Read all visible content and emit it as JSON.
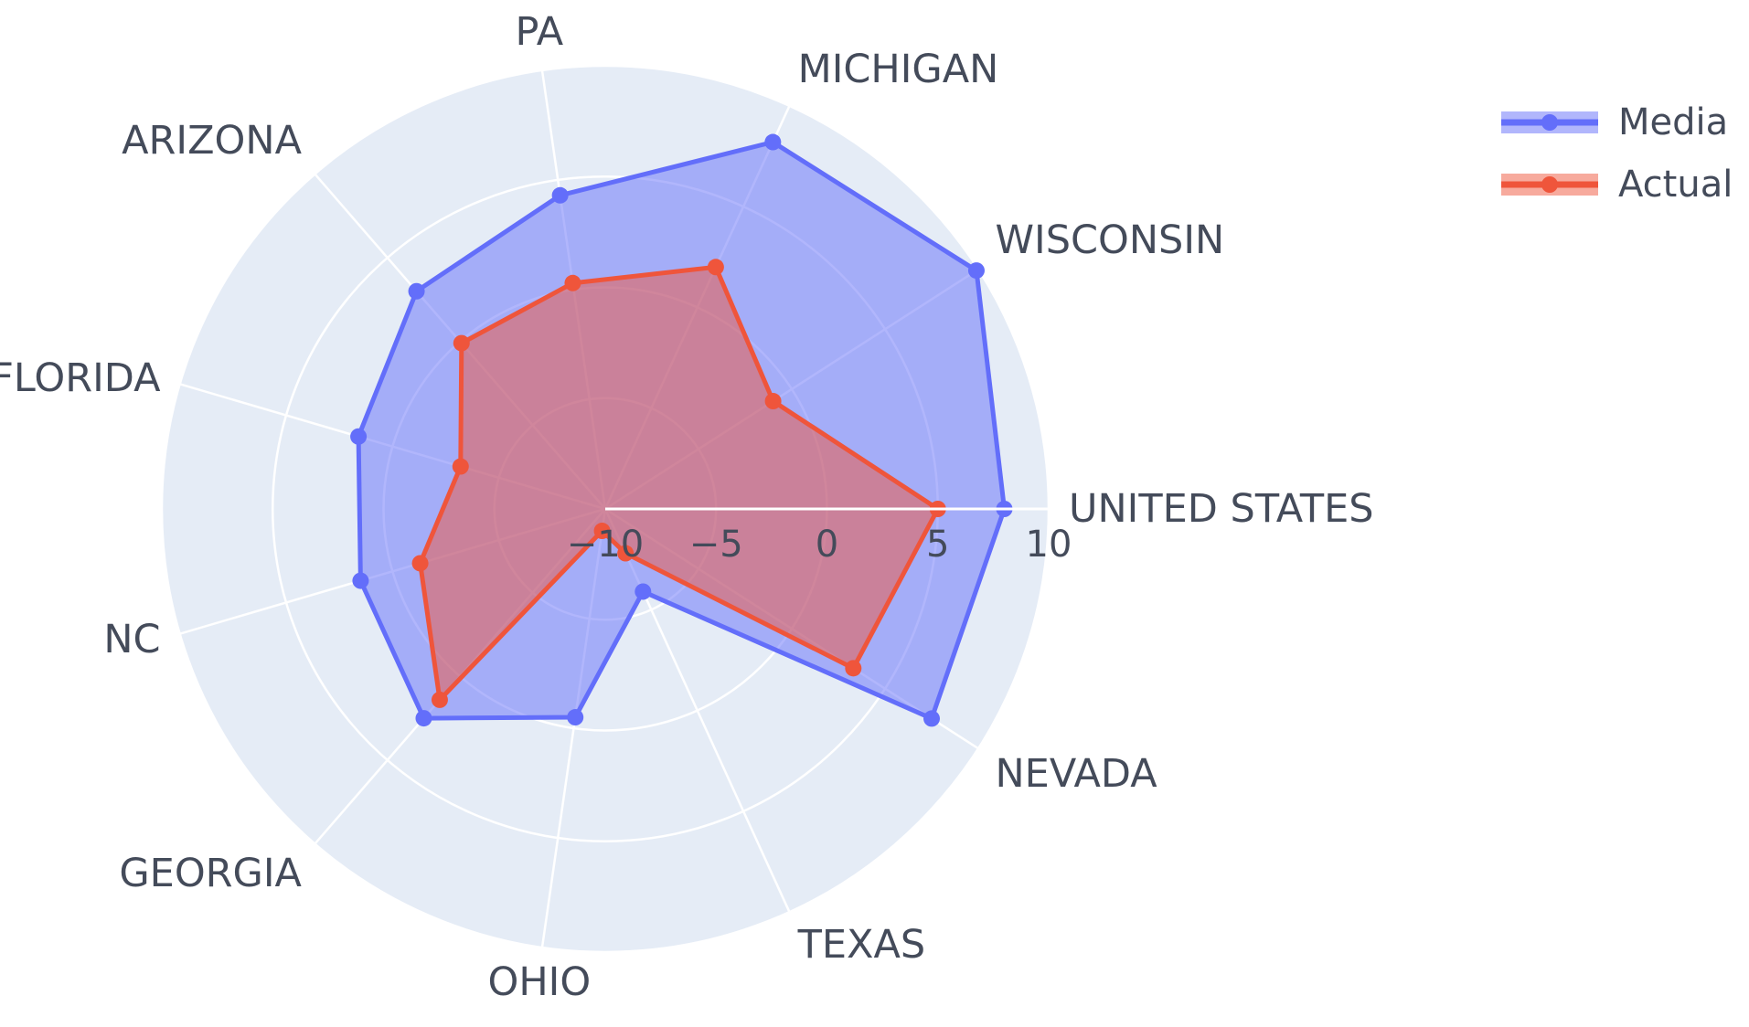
{
  "chart_data": {
    "type": "radar",
    "categories": [
      "UNITED STATES",
      "WISCONSIN",
      "MICHIGAN",
      "PA",
      "ARIZONA",
      "FLORIDA",
      "NC",
      "GEORGIA",
      "OHIO",
      "TEXAS",
      "NEVADA"
    ],
    "radial_range": [
      -10,
      10
    ],
    "radial_ticks": [
      -10,
      -5,
      0,
      5,
      10
    ],
    "radial_tick_labels": [
      "−10",
      "−5",
      "0",
      "5",
      "10"
    ],
    "grid": true,
    "legend_position": "top-right",
    "series": [
      {
        "name": "Media",
        "color": "#636efa",
        "values": [
          8,
          9.9,
          8.2,
          4.3,
          3.0,
          1.6,
          1.5,
          2.5,
          -0.5,
          -5.9,
          7.5
        ]
      },
      {
        "name": "Actual",
        "color": "#ef553b",
        "values": [
          5,
          -1.0,
          2.0,
          0.3,
          -0.1,
          -3.2,
          -1.3,
          1.4,
          -9.0,
          -7.8,
          3.3
        ]
      }
    ]
  }
}
